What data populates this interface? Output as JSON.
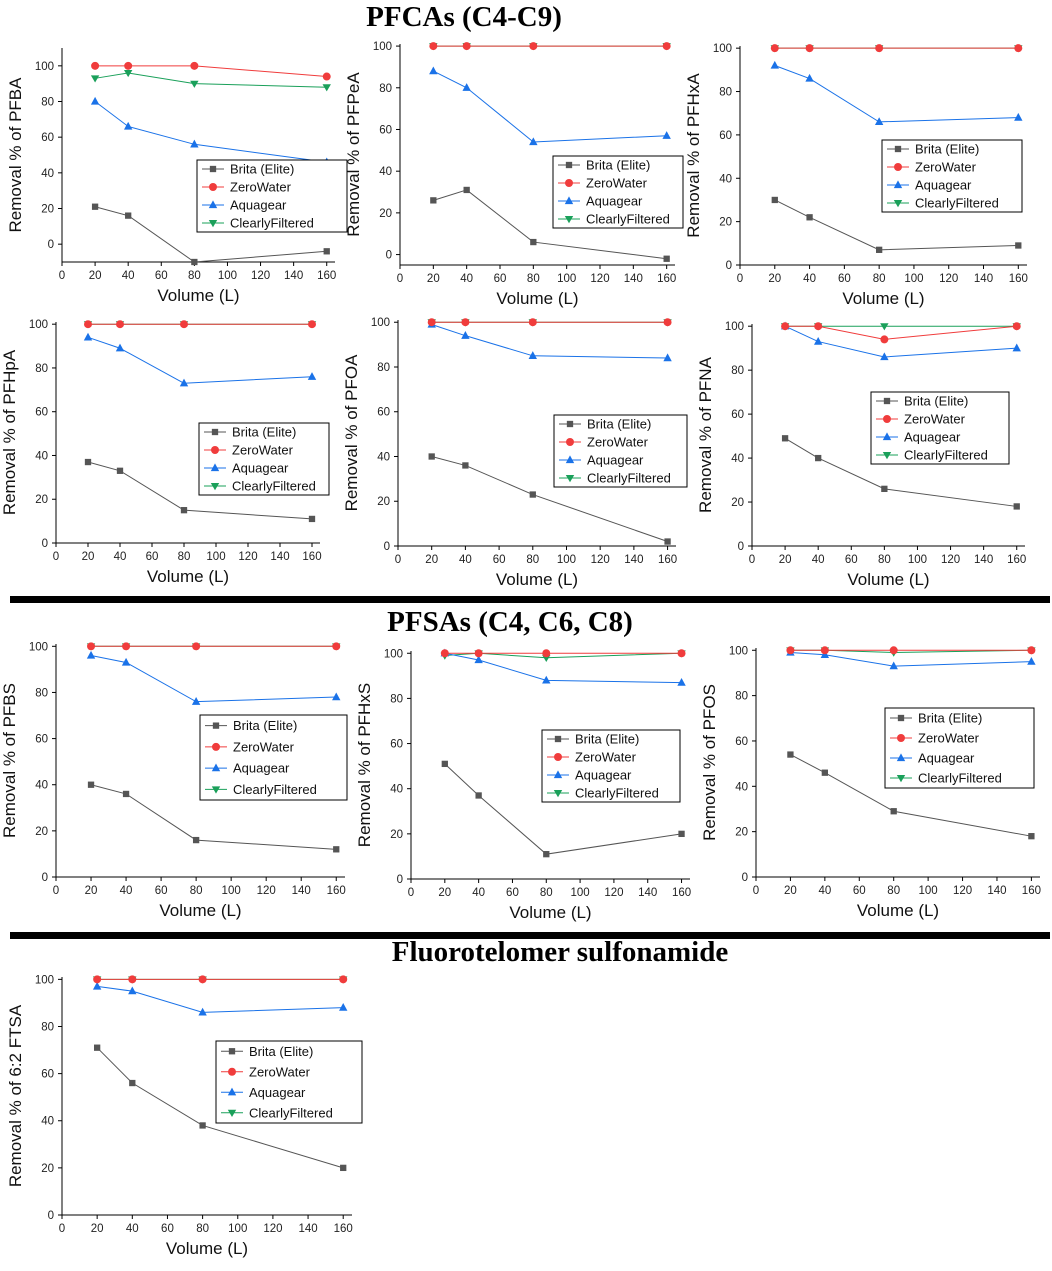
{
  "sections": [
    {
      "title": "PFCAs (C4-C9)"
    },
    {
      "title": "PFSAs (C4, C6, C8)"
    },
    {
      "title": "Fluorotelomer sulfonamide"
    }
  ],
  "colors": {
    "Brita (Elite)": "#555555",
    "ZeroWater": "#f03c3c",
    "Aquagear": "#1a72e8",
    "ClearlyFiltered": "#1aa05a",
    "axis": "#000000",
    "divider": "#000000"
  },
  "markers": {
    "Brita (Elite)": "square",
    "ZeroWater": "circle",
    "Aquagear": "triangle-up",
    "ClearlyFiltered": "triangle-down"
  },
  "chart_data": [
    {
      "type": "line",
      "title": "",
      "xlabel": "Volume (L)",
      "ylabel": "Removal % of PFBA",
      "x": [
        20,
        40,
        80,
        160
      ],
      "xlim": [
        0,
        165
      ],
      "ylim": [
        -10,
        110
      ],
      "xticks": [
        0,
        20,
        40,
        60,
        80,
        100,
        120,
        140,
        160
      ],
      "yticks": [
        0,
        20,
        40,
        60,
        80,
        100
      ],
      "legend": "bottom-right",
      "series": [
        {
          "name": "Brita (Elite)",
          "values": [
            21,
            16,
            -10,
            -4
          ]
        },
        {
          "name": "ZeroWater",
          "values": [
            100,
            100,
            100,
            94
          ]
        },
        {
          "name": "Aquagear",
          "values": [
            80,
            66,
            56,
            46
          ]
        },
        {
          "name": "ClearlyFiltered",
          "values": [
            93,
            96,
            90,
            88
          ]
        }
      ]
    },
    {
      "type": "line",
      "title": "",
      "xlabel": "Volume (L)",
      "ylabel": "Removal % of PFPeA",
      "x": [
        20,
        40,
        80,
        160
      ],
      "xlim": [
        0,
        165
      ],
      "ylim": [
        -5,
        101
      ],
      "xticks": [
        0,
        20,
        40,
        60,
        80,
        100,
        120,
        140,
        160
      ],
      "yticks": [
        0,
        20,
        40,
        60,
        80,
        100
      ],
      "legend": "bottom-right",
      "series": [
        {
          "name": "Brita (Elite)",
          "values": [
            26,
            31,
            6,
            -2
          ]
        },
        {
          "name": "ZeroWater",
          "values": [
            100,
            100,
            100,
            100
          ]
        },
        {
          "name": "Aquagear",
          "values": [
            88,
            80,
            54,
            57
          ]
        },
        {
          "name": "ClearlyFiltered",
          "values": [
            100,
            100,
            100,
            100
          ]
        }
      ]
    },
    {
      "type": "line",
      "title": "",
      "xlabel": "Volume (L)",
      "ylabel": "Removal % of PFHxA",
      "x": [
        20,
        40,
        80,
        160
      ],
      "xlim": [
        0,
        165
      ],
      "ylim": [
        0,
        101
      ],
      "xticks": [
        0,
        20,
        40,
        60,
        80,
        100,
        120,
        140,
        160
      ],
      "yticks": [
        0,
        20,
        40,
        60,
        80,
        100
      ],
      "legend": "bottom-right",
      "series": [
        {
          "name": "Brita (Elite)",
          "values": [
            30,
            22,
            7,
            9
          ]
        },
        {
          "name": "ZeroWater",
          "values": [
            100,
            100,
            100,
            100
          ]
        },
        {
          "name": "Aquagear",
          "values": [
            92,
            86,
            66,
            68
          ]
        },
        {
          "name": "ClearlyFiltered",
          "values": [
            100,
            100,
            100,
            100
          ]
        }
      ]
    },
    {
      "type": "line",
      "title": "",
      "xlabel": "Volume (L)",
      "ylabel": "Removal % of PFHpA",
      "x": [
        20,
        40,
        80,
        160
      ],
      "xlim": [
        0,
        165
      ],
      "ylim": [
        0,
        101
      ],
      "xticks": [
        0,
        20,
        40,
        60,
        80,
        100,
        120,
        140,
        160
      ],
      "yticks": [
        0,
        20,
        40,
        60,
        80,
        100
      ],
      "legend": "bottom-right",
      "series": [
        {
          "name": "Brita (Elite)",
          "values": [
            37,
            33,
            15,
            11
          ]
        },
        {
          "name": "ZeroWater",
          "values": [
            100,
            100,
            100,
            100
          ]
        },
        {
          "name": "Aquagear",
          "values": [
            94,
            89,
            73,
            76
          ]
        },
        {
          "name": "ClearlyFiltered",
          "values": [
            100,
            100,
            100,
            100
          ]
        }
      ]
    },
    {
      "type": "line",
      "title": "",
      "xlabel": "Volume (L)",
      "ylabel": "Removal % of PFOA",
      "x": [
        20,
        40,
        80,
        160
      ],
      "xlim": [
        0,
        165
      ],
      "ylim": [
        0,
        101
      ],
      "xticks": [
        0,
        20,
        40,
        60,
        80,
        100,
        120,
        140,
        160
      ],
      "yticks": [
        0,
        20,
        40,
        60,
        80,
        100
      ],
      "legend": "bottom-right",
      "series": [
        {
          "name": "Brita (Elite)",
          "values": [
            40,
            36,
            23,
            2
          ]
        },
        {
          "name": "ZeroWater",
          "values": [
            100,
            100,
            100,
            100
          ]
        },
        {
          "name": "Aquagear",
          "values": [
            99,
            94,
            85,
            84
          ]
        },
        {
          "name": "ClearlyFiltered",
          "values": [
            100,
            100,
            100,
            100
          ]
        }
      ]
    },
    {
      "type": "line",
      "title": "",
      "xlabel": "Volume (L)",
      "ylabel": "Removal % of PFNA",
      "x": [
        20,
        40,
        80,
        160
      ],
      "xlim": [
        0,
        165
      ],
      "ylim": [
        0,
        101
      ],
      "xticks": [
        0,
        20,
        40,
        60,
        80,
        100,
        120,
        140,
        160
      ],
      "yticks": [
        0,
        20,
        40,
        60,
        80,
        100
      ],
      "legend": "center-right",
      "series": [
        {
          "name": "Brita (Elite)",
          "values": [
            49,
            40,
            26,
            18
          ]
        },
        {
          "name": "ZeroWater",
          "values": [
            100,
            100,
            94,
            100
          ]
        },
        {
          "name": "Aquagear",
          "values": [
            100,
            93,
            86,
            90
          ]
        },
        {
          "name": "ClearlyFiltered",
          "values": [
            100,
            100,
            100,
            100
          ]
        }
      ]
    },
    {
      "type": "line",
      "title": "",
      "xlabel": "Volume (L)",
      "ylabel": "Removal % of PFBS",
      "x": [
        20,
        40,
        80,
        160
      ],
      "xlim": [
        0,
        165
      ],
      "ylim": [
        0,
        101
      ],
      "xticks": [
        0,
        20,
        40,
        60,
        80,
        100,
        120,
        140,
        160
      ],
      "yticks": [
        0,
        20,
        40,
        60,
        80,
        100
      ],
      "legend": "center-right",
      "series": [
        {
          "name": "Brita (Elite)",
          "values": [
            40,
            36,
            16,
            12
          ]
        },
        {
          "name": "ZeroWater",
          "values": [
            100,
            100,
            100,
            100
          ]
        },
        {
          "name": "Aquagear",
          "values": [
            96,
            93,
            76,
            78
          ]
        },
        {
          "name": "ClearlyFiltered",
          "values": [
            100,
            100,
            100,
            100
          ]
        }
      ]
    },
    {
      "type": "line",
      "title": "",
      "xlabel": "Volume (L)",
      "ylabel": "Removal % of PFHxS",
      "x": [
        20,
        40,
        80,
        160
      ],
      "xlim": [
        0,
        165
      ],
      "ylim": [
        0,
        101
      ],
      "xticks": [
        0,
        20,
        40,
        60,
        80,
        100,
        120,
        140,
        160
      ],
      "yticks": [
        0,
        20,
        40,
        60,
        80,
        100
      ],
      "legend": "center-right",
      "series": [
        {
          "name": "Brita (Elite)",
          "values": [
            51,
            37,
            11,
            20
          ]
        },
        {
          "name": "ZeroWater",
          "values": [
            100,
            100,
            100,
            100
          ]
        },
        {
          "name": "Aquagear",
          "values": [
            100,
            97,
            88,
            87
          ]
        },
        {
          "name": "ClearlyFiltered",
          "values": [
            99,
            100,
            98,
            100
          ]
        }
      ]
    },
    {
      "type": "line",
      "title": "",
      "xlabel": "Volume (L)",
      "ylabel": "Removal % of PFOS",
      "x": [
        20,
        40,
        80,
        160
      ],
      "xlim": [
        0,
        165
      ],
      "ylim": [
        0,
        101
      ],
      "xticks": [
        0,
        20,
        40,
        60,
        80,
        100,
        120,
        140,
        160
      ],
      "yticks": [
        0,
        20,
        40,
        60,
        80,
        100
      ],
      "legend": "center-right",
      "series": [
        {
          "name": "Brita (Elite)",
          "values": [
            54,
            46,
            29,
            18
          ]
        },
        {
          "name": "ZeroWater",
          "values": [
            100,
            100,
            100,
            100
          ]
        },
        {
          "name": "Aquagear",
          "values": [
            99,
            98,
            93,
            95
          ]
        },
        {
          "name": "ClearlyFiltered",
          "values": [
            100,
            100,
            99,
            100
          ]
        }
      ]
    },
    {
      "type": "line",
      "title": "",
      "xlabel": "Volume (L)",
      "ylabel": "Removal % of 6:2 FTSA",
      "x": [
        20,
        40,
        80,
        160
      ],
      "xlim": [
        0,
        165
      ],
      "ylim": [
        0,
        101
      ],
      "xticks": [
        0,
        20,
        40,
        60,
        80,
        100,
        120,
        140,
        160
      ],
      "yticks": [
        0,
        20,
        40,
        60,
        80,
        100
      ],
      "legend": "center-right",
      "series": [
        {
          "name": "Brita (Elite)",
          "values": [
            71,
            56,
            38,
            20
          ]
        },
        {
          "name": "ZeroWater",
          "values": [
            100,
            100,
            100,
            100
          ]
        },
        {
          "name": "Aquagear",
          "values": [
            97,
            95,
            86,
            88
          ]
        },
        {
          "name": "ClearlyFiltered",
          "values": [
            100,
            100,
            100,
            100
          ]
        }
      ]
    }
  ]
}
